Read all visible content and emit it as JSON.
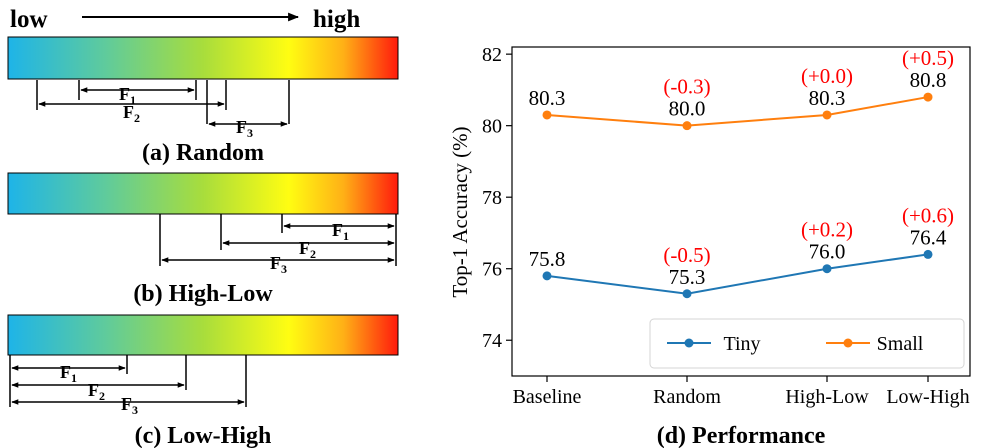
{
  "left_panel": {
    "low_label": "low",
    "high_label": "high",
    "f1": "F",
    "f1_sub": "1",
    "f2": "F",
    "f2_sub": "2",
    "f3": "F",
    "f3_sub": "3",
    "captions": {
      "random": "(a) Random",
      "high_low": "(b) High-Low",
      "low_high": "(c) Low-High"
    },
    "gradient_colors": [
      "#1eb4e8",
      "#5fcb9c",
      "#a8dd3c",
      "#fffd12",
      "#ffb016",
      "#ff1a0c"
    ]
  },
  "chart_data": {
    "type": "line",
    "caption": "(d) Performance",
    "categories": [
      "Baseline",
      "Random",
      "High-Low",
      "Low-High"
    ],
    "ylabel": "Top-1 Accuracy (%)",
    "ylim": [
      73,
      82.2
    ],
    "yticks": [
      74,
      76,
      78,
      80,
      82
    ],
    "series": [
      {
        "name": "Tiny",
        "color": "#1f77b4",
        "values": [
          75.8,
          75.3,
          76.0,
          76.4
        ],
        "value_labels": [
          "75.8",
          "75.3",
          "76.0",
          "76.4"
        ],
        "delta_labels": [
          "",
          "(-0.5)",
          "(+0.2)",
          "(+0.6)"
        ]
      },
      {
        "name": "Small",
        "color": "#ff7f0e",
        "values": [
          80.3,
          80.0,
          80.3,
          80.8
        ],
        "value_labels": [
          "80.3",
          "80.0",
          "80.3",
          "80.8"
        ],
        "delta_labels": [
          "",
          "(-0.3)",
          "(+0.0)",
          "(+0.5)"
        ]
      }
    ],
    "delta_color": "#ff0000",
    "legend_position": "lower-right",
    "grid": false
  }
}
